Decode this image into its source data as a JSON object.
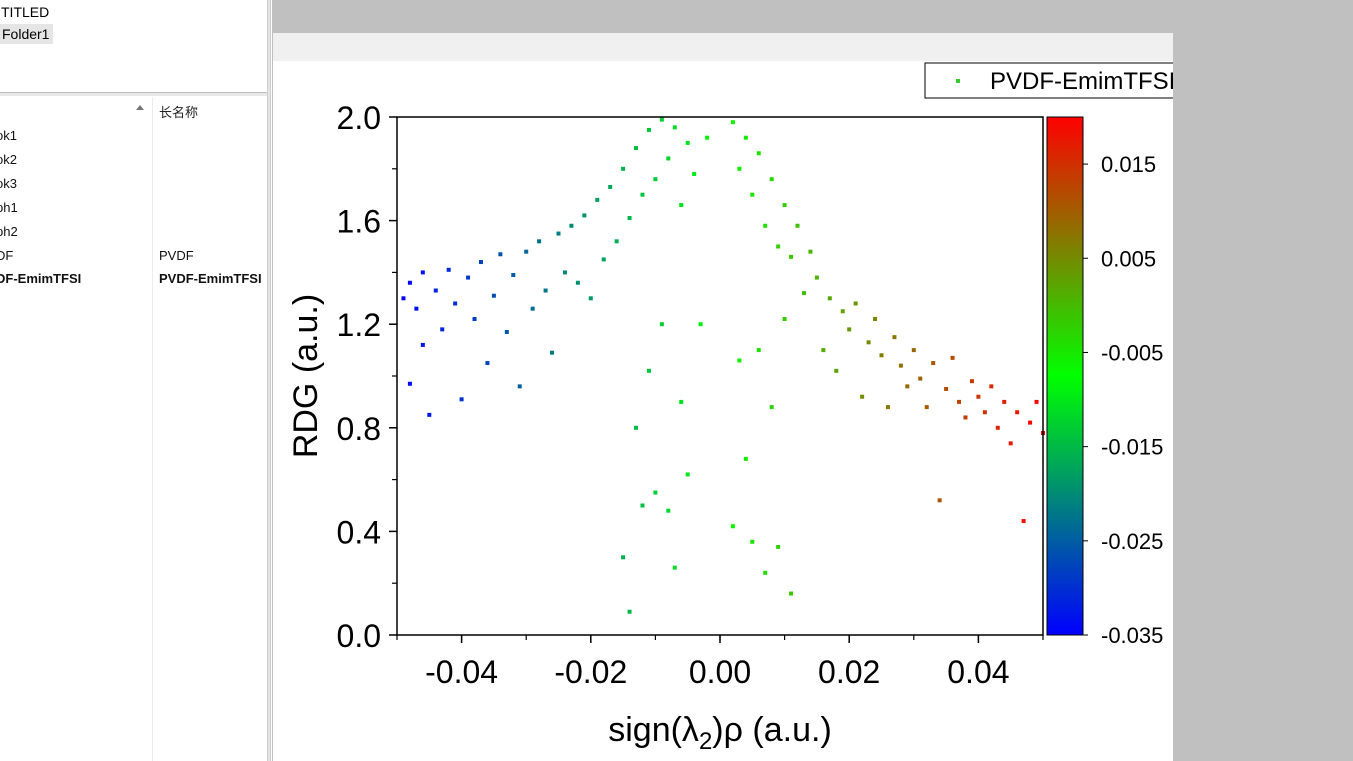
{
  "project": {
    "root_label": "TITLED",
    "folder_label": "Folder1",
    "column_long_name_header": "长名称",
    "items": [
      {
        "name": "ok1",
        "long_name": ""
      },
      {
        "name": "ok2",
        "long_name": ""
      },
      {
        "name": "ok3",
        "long_name": ""
      },
      {
        "name": "ph1",
        "long_name": ""
      },
      {
        "name": "ph2",
        "long_name": ""
      },
      {
        "name": "DF",
        "long_name": "PVDF"
      },
      {
        "name": "DF-EmimTFSI",
        "long_name": "PVDF-EmimTFSI"
      }
    ]
  },
  "chart_data": {
    "type": "scatter",
    "title": "",
    "xlabel": "sign(λ₂)ρ (a.u.)",
    "ylabel": "RDG (a.u.)",
    "xlim": [
      -0.05,
      0.05
    ],
    "ylim": [
      0.0,
      2.0
    ],
    "xticks": [
      -0.04,
      -0.02,
      0.0,
      0.02,
      0.04
    ],
    "xtick_labels": [
      "-0.04",
      "-0.02",
      "0.00",
      "0.02",
      "0.04"
    ],
    "yticks": [
      0.0,
      0.4,
      0.8,
      1.2,
      1.6,
      2.0
    ],
    "ytick_labels": [
      "0.0",
      "0.4",
      "0.8",
      "1.2",
      "1.6",
      "2.0"
    ],
    "legend": {
      "label": "PVDF-EmimTFSI",
      "position": "top-right",
      "color": "#33cc33"
    },
    "colorbar": {
      "min": -0.035,
      "max": 0.02,
      "ticks": [
        0.015,
        0.005,
        -0.005,
        -0.015,
        -0.025,
        -0.035
      ],
      "tick_labels": [
        "0.015",
        "0.005",
        "-0.005",
        "-0.015",
        "-0.025",
        "-0.035"
      ],
      "colors": [
        "#0000ff",
        "#00ff00",
        "#ff0000"
      ]
    },
    "series": [
      {
        "name": "PVDF-EmimTFSI",
        "points": [
          [
            -0.049,
            1.3
          ],
          [
            -0.048,
            1.36
          ],
          [
            -0.048,
            0.97
          ],
          [
            -0.047,
            1.26
          ],
          [
            -0.046,
            1.4
          ],
          [
            -0.046,
            1.12
          ],
          [
            -0.045,
            0.85
          ],
          [
            -0.044,
            1.33
          ],
          [
            -0.043,
            1.18
          ],
          [
            -0.042,
            1.41
          ],
          [
            -0.041,
            1.28
          ],
          [
            -0.04,
            0.91
          ],
          [
            -0.039,
            1.38
          ],
          [
            -0.038,
            1.22
          ],
          [
            -0.037,
            1.44
          ],
          [
            -0.036,
            1.05
          ],
          [
            -0.035,
            1.31
          ],
          [
            -0.034,
            1.47
          ],
          [
            -0.033,
            1.17
          ],
          [
            -0.032,
            1.39
          ],
          [
            -0.031,
            0.96
          ],
          [
            -0.03,
            1.48
          ],
          [
            -0.029,
            1.26
          ],
          [
            -0.028,
            1.52
          ],
          [
            -0.027,
            1.33
          ],
          [
            -0.026,
            1.09
          ],
          [
            -0.025,
            1.55
          ],
          [
            -0.024,
            1.4
          ],
          [
            -0.023,
            1.58
          ],
          [
            -0.022,
            1.36
          ],
          [
            -0.021,
            1.62
          ],
          [
            -0.02,
            1.3
          ],
          [
            -0.019,
            1.68
          ],
          [
            -0.018,
            1.45
          ],
          [
            -0.017,
            1.73
          ],
          [
            -0.016,
            1.52
          ],
          [
            -0.015,
            1.8
          ],
          [
            -0.015,
            0.3
          ],
          [
            -0.014,
            1.61
          ],
          [
            -0.014,
            0.09
          ],
          [
            -0.013,
            1.88
          ],
          [
            -0.013,
            0.8
          ],
          [
            -0.012,
            1.7
          ],
          [
            -0.012,
            0.5
          ],
          [
            -0.011,
            1.95
          ],
          [
            -0.011,
            1.02
          ],
          [
            -0.01,
            1.76
          ],
          [
            -0.01,
            0.55
          ],
          [
            -0.009,
            1.99
          ],
          [
            -0.009,
            1.2
          ],
          [
            -0.008,
            1.84
          ],
          [
            -0.008,
            0.48
          ],
          [
            -0.007,
            1.96
          ],
          [
            -0.007,
            0.26
          ],
          [
            -0.006,
            1.66
          ],
          [
            -0.006,
            0.9
          ],
          [
            -0.005,
            1.9
          ],
          [
            -0.005,
            0.62
          ],
          [
            -0.004,
            1.78
          ],
          [
            -0.003,
            1.2
          ],
          [
            -0.002,
            1.92
          ],
          [
            0.002,
            1.98
          ],
          [
            0.002,
            0.42
          ],
          [
            0.003,
            1.8
          ],
          [
            0.003,
            1.06
          ],
          [
            0.004,
            1.92
          ],
          [
            0.004,
            0.68
          ],
          [
            0.005,
            1.7
          ],
          [
            0.005,
            0.36
          ],
          [
            0.006,
            1.86
          ],
          [
            0.006,
            1.1
          ],
          [
            0.007,
            1.58
          ],
          [
            0.007,
            0.24
          ],
          [
            0.008,
            1.76
          ],
          [
            0.008,
            0.88
          ],
          [
            0.009,
            1.5
          ],
          [
            0.009,
            0.34
          ],
          [
            0.01,
            1.66
          ],
          [
            0.01,
            1.22
          ],
          [
            0.011,
            1.46
          ],
          [
            0.011,
            0.16
          ],
          [
            0.012,
            1.58
          ],
          [
            0.013,
            1.32
          ],
          [
            0.014,
            1.48
          ],
          [
            0.015,
            1.38
          ],
          [
            0.016,
            1.1
          ],
          [
            0.017,
            1.3
          ],
          [
            0.018,
            1.02
          ],
          [
            0.019,
            1.25
          ],
          [
            0.02,
            1.18
          ],
          [
            0.021,
            1.28
          ],
          [
            0.022,
            0.92
          ],
          [
            0.023,
            1.13
          ],
          [
            0.024,
            1.22
          ],
          [
            0.025,
            1.08
          ],
          [
            0.026,
            0.88
          ],
          [
            0.027,
            1.15
          ],
          [
            0.028,
            1.04
          ],
          [
            0.029,
            0.96
          ],
          [
            0.03,
            1.1
          ],
          [
            0.031,
            0.99
          ],
          [
            0.032,
            0.88
          ],
          [
            0.033,
            1.05
          ],
          [
            0.034,
            0.52
          ],
          [
            0.035,
            0.95
          ],
          [
            0.036,
            1.07
          ],
          [
            0.037,
            0.9
          ],
          [
            0.038,
            0.84
          ],
          [
            0.039,
            0.98
          ],
          [
            0.04,
            0.92
          ],
          [
            0.041,
            0.86
          ],
          [
            0.042,
            0.96
          ],
          [
            0.043,
            0.8
          ],
          [
            0.044,
            0.9
          ],
          [
            0.045,
            0.74
          ],
          [
            0.046,
            0.86
          ],
          [
            0.047,
            0.44
          ],
          [
            0.048,
            0.82
          ],
          [
            0.049,
            0.9
          ],
          [
            0.05,
            0.78
          ]
        ]
      }
    ]
  }
}
